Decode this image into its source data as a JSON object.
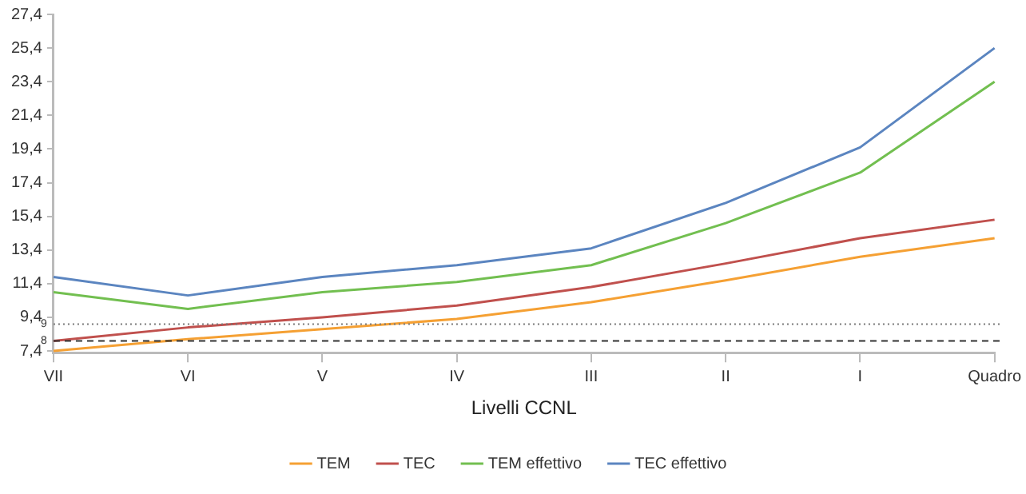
{
  "chart_data": {
    "type": "line",
    "xlabel": "Livelli CCNL",
    "categories": [
      "VII",
      "VI",
      "V",
      "IV",
      "III",
      "II",
      "I",
      "Quadro"
    ],
    "series": [
      {
        "name": "TEM",
        "color": "#f5a033",
        "values": [
          7.4,
          8.1,
          8.7,
          9.3,
          10.3,
          11.6,
          13.0,
          14.1
        ]
      },
      {
        "name": "TEC",
        "color": "#c0504d",
        "values": [
          8.0,
          8.8,
          9.4,
          10.1,
          11.2,
          12.6,
          14.1,
          15.2
        ]
      },
      {
        "name": "TEM effettivo",
        "color": "#72bf50",
        "values": [
          10.9,
          9.9,
          10.9,
          11.5,
          12.5,
          15.0,
          18.0,
          23.4
        ]
      },
      {
        "name": "TEC effettivo",
        "color": "#5b85c0",
        "values": [
          11.8,
          10.7,
          11.8,
          12.5,
          13.5,
          16.2,
          19.5,
          25.4
        ]
      }
    ],
    "ylim": [
      7.3,
      27.4
    ],
    "yticks": [
      {
        "value": 7.4,
        "label": "7,4"
      },
      {
        "value": 9.4,
        "label": "9,4"
      },
      {
        "value": 11.4,
        "label": "11,4"
      },
      {
        "value": 13.4,
        "label": "13,4"
      },
      {
        "value": 15.4,
        "label": "15,4"
      },
      {
        "value": 17.4,
        "label": "17,4"
      },
      {
        "value": 19.4,
        "label": "19,4"
      },
      {
        "value": 21.4,
        "label": "21,4"
      },
      {
        "value": 23.4,
        "label": "23,4"
      },
      {
        "value": 25.4,
        "label": "25,4"
      },
      {
        "value": 27.4,
        "label": "27,4"
      }
    ],
    "ref_lines": [
      {
        "axis": "y",
        "value": 9,
        "label": "9",
        "color": "#777777",
        "line_style": "dotted"
      },
      {
        "axis": "y",
        "value": 8,
        "label": "8",
        "color": "#333333",
        "line_style": "dashed"
      }
    ],
    "grid": false,
    "legend": "bottom",
    "marker": "none",
    "line_style": "solid"
  }
}
